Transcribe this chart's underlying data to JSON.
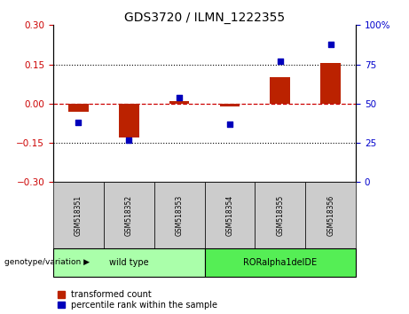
{
  "title": "GDS3720 / ILMN_1222355",
  "samples": [
    "GSM518351",
    "GSM518352",
    "GSM518353",
    "GSM518354",
    "GSM518355",
    "GSM518356"
  ],
  "transformed_count": [
    -0.03,
    -0.13,
    0.01,
    -0.01,
    0.1,
    0.155
  ],
  "percentile_rank": [
    38,
    27,
    54,
    37,
    77,
    88
  ],
  "ylim_left": [
    -0.3,
    0.3
  ],
  "ylim_right": [
    0,
    100
  ],
  "yticks_left": [
    -0.3,
    -0.15,
    0,
    0.15,
    0.3
  ],
  "yticks_right": [
    0,
    25,
    50,
    75,
    100
  ],
  "yticklabels_right": [
    "0",
    "25",
    "50",
    "75",
    "100%"
  ],
  "dotted_lines": [
    -0.15,
    0.15
  ],
  "zero_line_y": 0,
  "bar_color": "#bb2200",
  "scatter_color": "#0000bb",
  "zero_line_color": "#cc0000",
  "grid_color": "#000000",
  "genotype_labels": [
    "wild type",
    "RORalpha1delDE"
  ],
  "genotype_ranges": [
    [
      0,
      2
    ],
    [
      3,
      5
    ]
  ],
  "genotype_color_light": "#aaffaa",
  "genotype_color_dark": "#55ee55",
  "sample_box_color": "#cccccc",
  "legend_items": [
    "transformed count",
    "percentile rank within the sample"
  ],
  "legend_colors": [
    "#bb2200",
    "#0000bb"
  ],
  "genotype_label_prefix": "genotype/variation",
  "background_color": "#ffffff",
  "plot_bg_color": "#ffffff",
  "tick_label_color_left": "#cc0000",
  "tick_label_color_right": "#0000cc",
  "title_fontsize": 10,
  "tick_fontsize": 7.5,
  "label_fontsize": 7,
  "legend_fontsize": 7
}
